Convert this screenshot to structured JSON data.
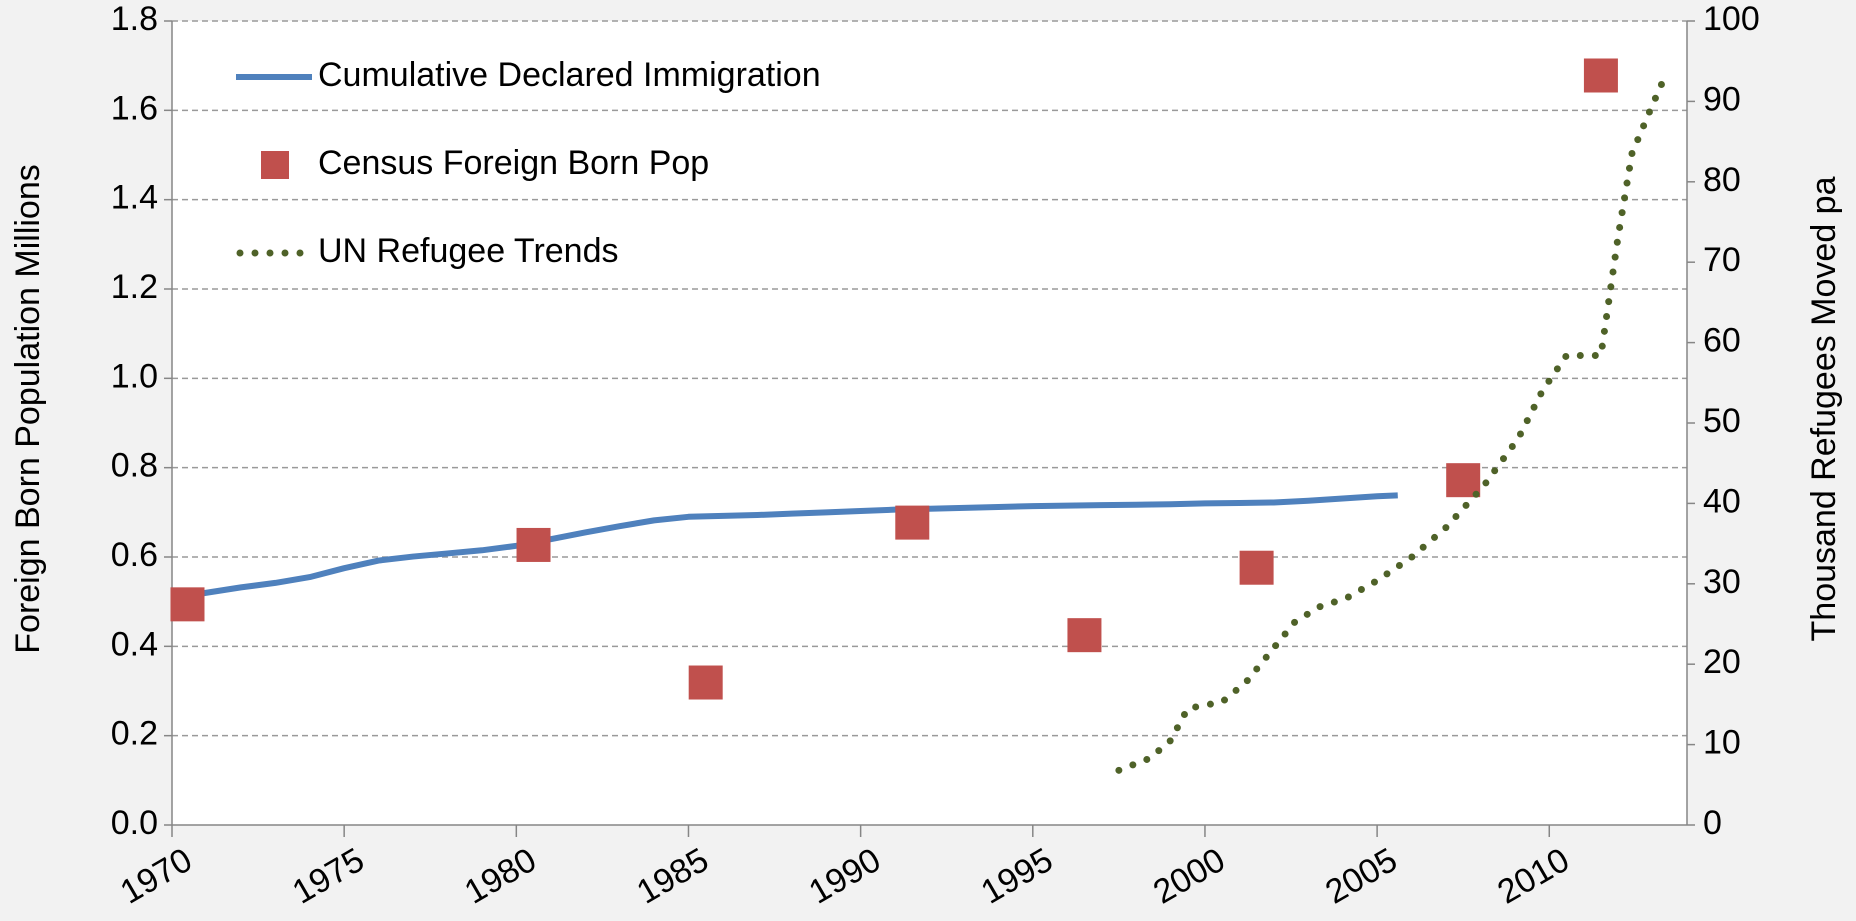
{
  "chart_data": {
    "type": "line",
    "ylabel": "Foreign Born Population Millions",
    "y2label": "Thousand Refugees Moved pa",
    "xlim": [
      1970,
      2014
    ],
    "xticks": [
      1970,
      1975,
      1980,
      1985,
      1990,
      1995,
      2000,
      2005,
      2010
    ],
    "ylim": [
      0,
      1.8
    ],
    "yticks": [
      {
        "value": 0,
        "label": "0.0"
      },
      0.2,
      0.4,
      0.6,
      0.8,
      {
        "value": 1,
        "label": "1.0"
      },
      1.2,
      1.4,
      1.6,
      1.8
    ],
    "y2lim": [
      0,
      100
    ],
    "y2ticks": [
      0,
      10,
      20,
      30,
      40,
      50,
      60,
      70,
      80,
      90,
      100
    ],
    "grid": true,
    "legend": "upper left",
    "series": [
      {
        "name": "Cumulative Declared Immigration",
        "color": "#4f81bd",
        "style": "solid",
        "x": [
          1970.2,
          1971,
          1972,
          1973,
          1974,
          1975,
          1976,
          1977,
          1978,
          1979,
          1980,
          1981,
          1982,
          1983,
          1984,
          1985,
          1986,
          1987,
          1988,
          1989,
          1990,
          1991,
          1992,
          1993,
          1994,
          1995,
          1996,
          1997,
          1998,
          1999,
          2000,
          2001,
          2002,
          2003,
          2004,
          2005,
          2005.6
        ],
        "values": [
          0.51,
          0.52,
          0.532,
          0.542,
          0.555,
          0.575,
          0.592,
          0.601,
          0.608,
          0.615,
          0.625,
          0.64,
          0.655,
          0.669,
          0.682,
          0.69,
          0.692,
          0.694,
          0.697,
          0.7,
          0.703,
          0.706,
          0.708,
          0.71,
          0.712,
          0.714,
          0.715,
          0.716,
          0.717,
          0.718,
          0.72,
          0.721,
          0.722,
          0.726,
          0.731,
          0.736,
          0.738
        ]
      },
      {
        "name": "Census Foreign Born Pop",
        "color": "#c0504d",
        "style": "square",
        "x": [
          1970.45,
          1980.5,
          1985.5,
          1991.5,
          1996.5,
          2001.5,
          2007.5,
          2011.5
        ],
        "values": [
          0.494,
          0.627,
          0.319,
          0.677,
          0.425,
          0.576,
          0.772,
          1.678
        ]
      },
      {
        "name": "UN Refugee Trends",
        "color": "#4f6228",
        "style": "dotted",
        "axis": "y2",
        "x": [
          1997.5,
          1998.4,
          1999,
          1999.5,
          2000.5,
          2001.2,
          2001.9,
          2002.6,
          2003.3,
          2004.1,
          2005,
          2006,
          2007,
          2008.1,
          2009.1,
          2009.8,
          2010.5,
          2011.5,
          2012,
          2012.4,
          2012.9,
          2013.4
        ],
        "values": [
          6.8,
          8.3,
          10.5,
          14.5,
          15.3,
          17.8,
          21.5,
          25.2,
          27.1,
          28.2,
          30.4,
          33.3,
          37,
          42.2,
          48.1,
          54,
          58.4,
          58.4,
          73.2,
          83.5,
          88.6,
          93.5
        ]
      }
    ]
  }
}
